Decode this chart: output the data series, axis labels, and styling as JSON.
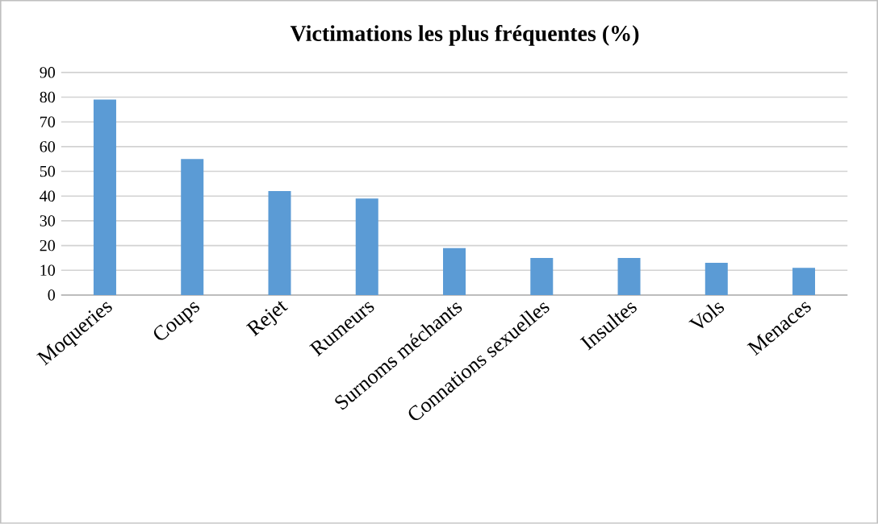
{
  "chart_data": {
    "type": "bar",
    "title": "Victimations les plus fréquentes (%)",
    "categories": [
      "Moqueries",
      "Coups",
      "Rejet",
      "Rumeurs",
      "Surnoms méchants",
      "Connations sexuelles",
      "Insultes",
      "Vols",
      "Menaces"
    ],
    "values": [
      79,
      55,
      42,
      39,
      19,
      15,
      15,
      13,
      11
    ],
    "color": "#5b9bd5",
    "ylim": [
      0,
      90
    ],
    "yticks": [
      0,
      10,
      20,
      30,
      40,
      50,
      60,
      70,
      80,
      90
    ],
    "grid": "y"
  }
}
